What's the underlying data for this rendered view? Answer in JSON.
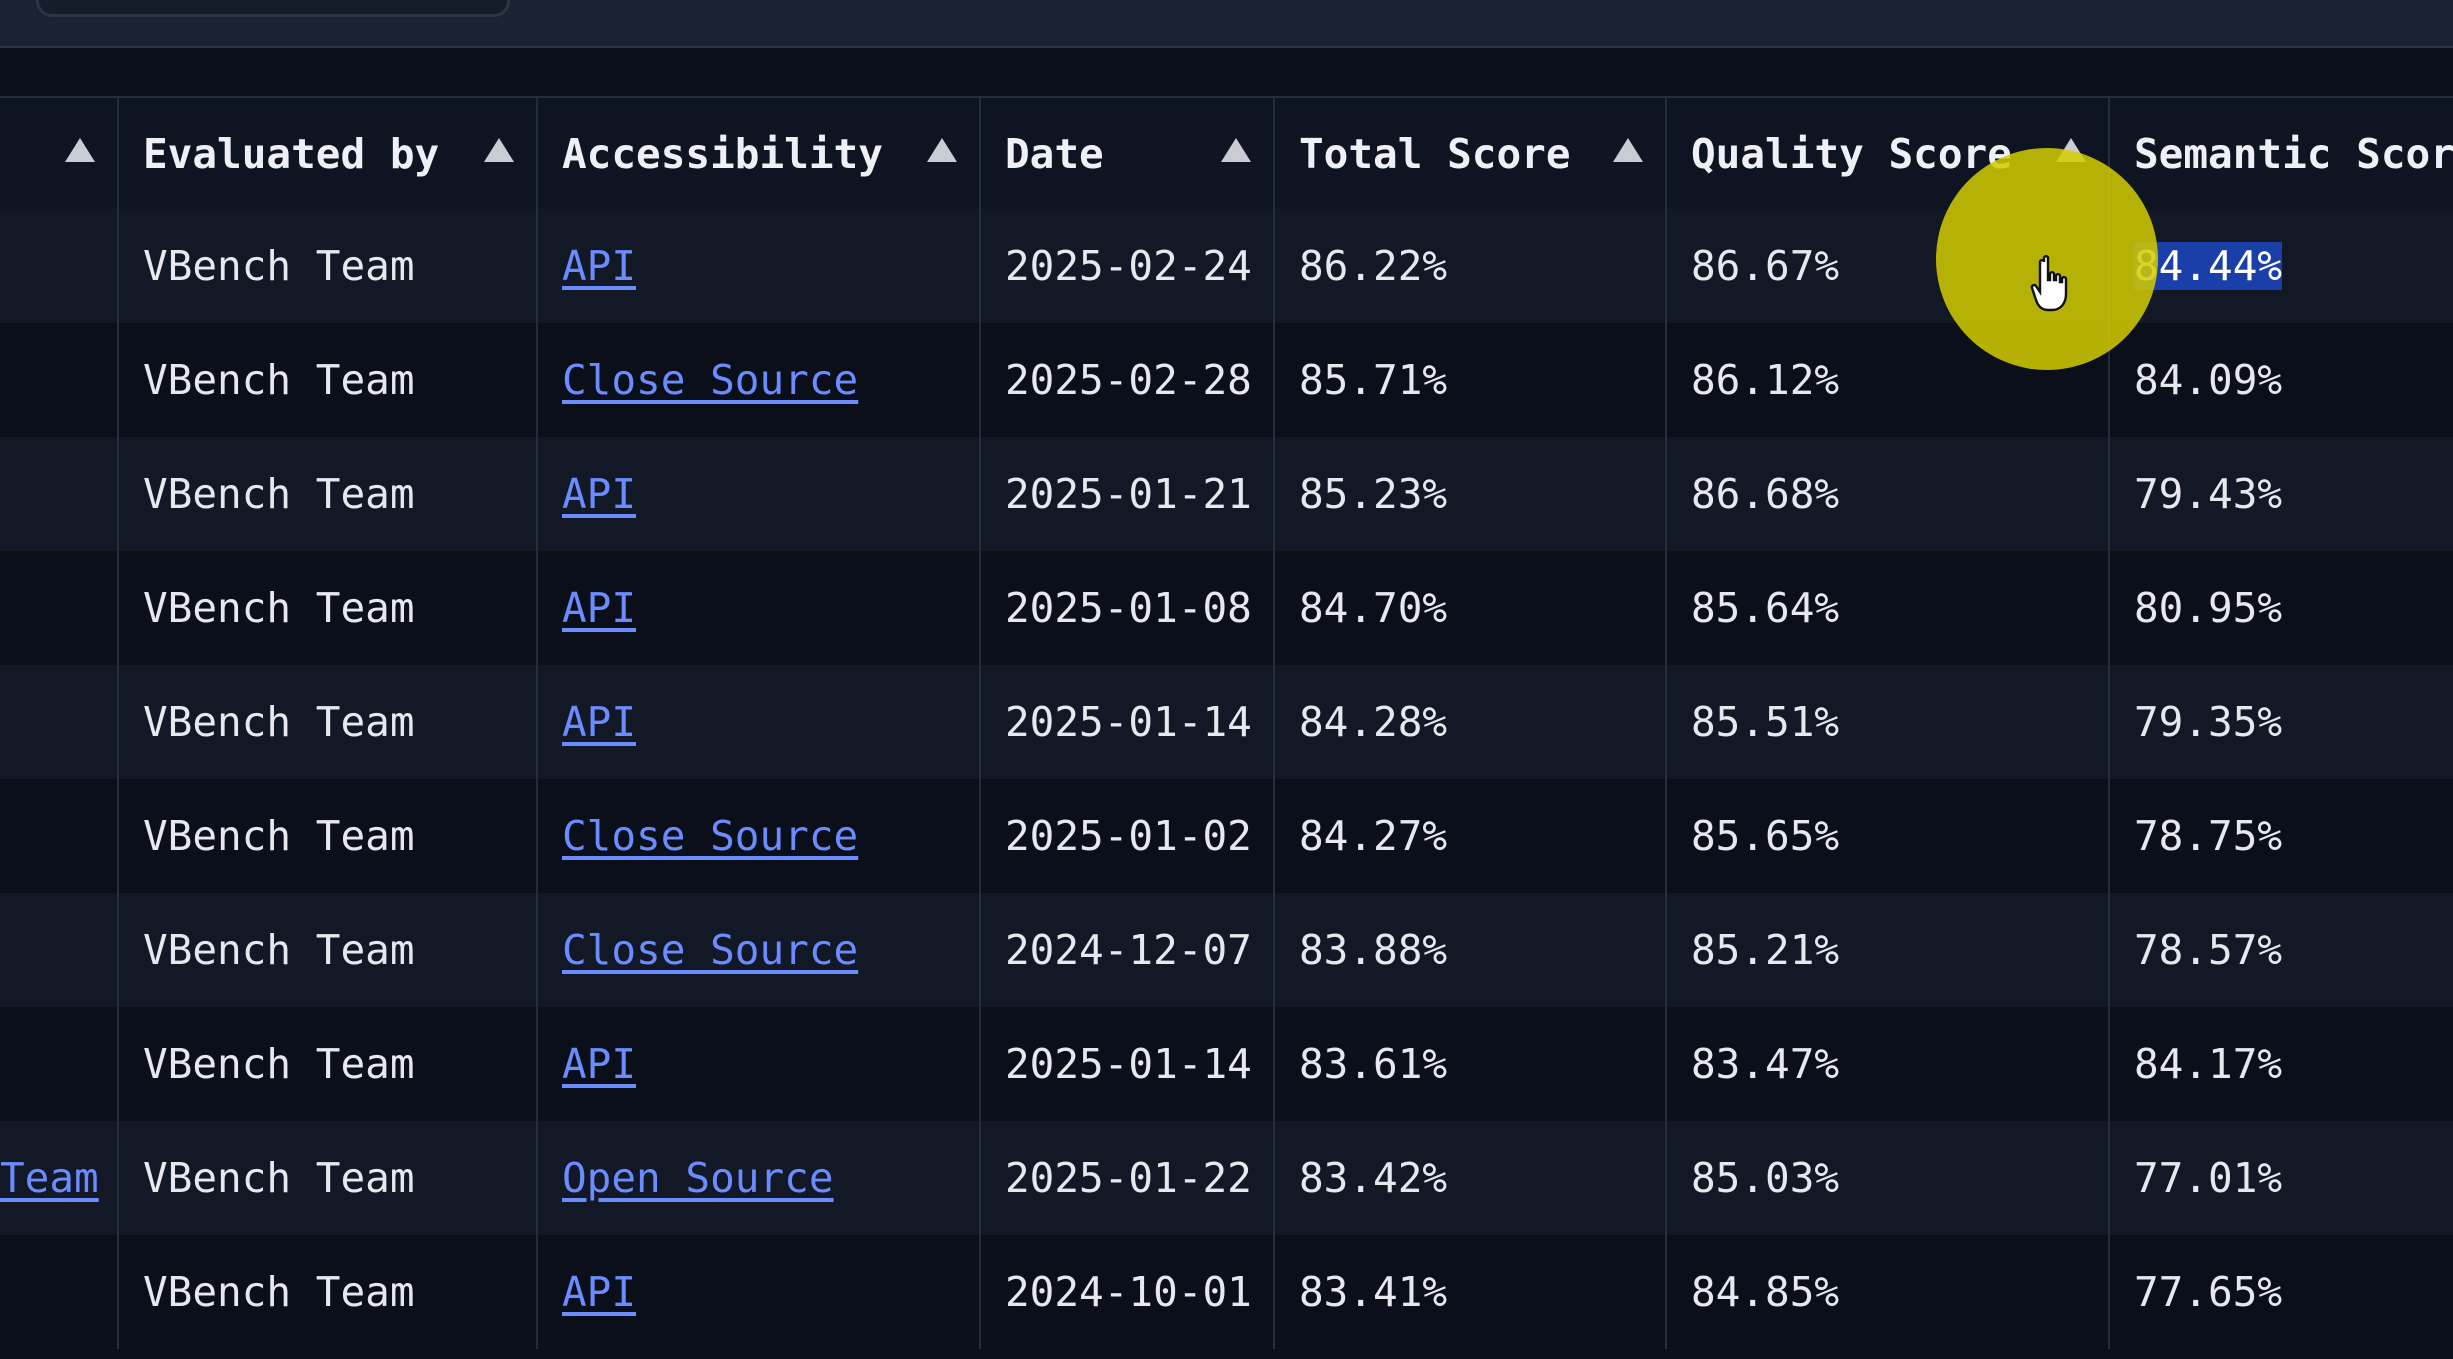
{
  "columns": [
    {
      "label": ""
    },
    {
      "label": "Evaluated by"
    },
    {
      "label": "Accessibility"
    },
    {
      "label": "Date"
    },
    {
      "label": "Total Score"
    },
    {
      "label": "Quality Score"
    },
    {
      "label": "Semantic Scor"
    }
  ],
  "rows": [
    {
      "first": "",
      "evaluated_by": "VBench Team",
      "accessibility": "API",
      "date": "2025-02-24",
      "total": "86.22%",
      "quality": "86.67%",
      "semantic": "84.44%"
    },
    {
      "first": "",
      "evaluated_by": "VBench Team",
      "accessibility": "Close Source",
      "date": "2025-02-28",
      "total": "85.71%",
      "quality": "86.12%",
      "semantic": "84.09%"
    },
    {
      "first": "",
      "evaluated_by": "VBench Team",
      "accessibility": "API",
      "date": "2025-01-21",
      "total": "85.23%",
      "quality": "86.68%",
      "semantic": "79.43%"
    },
    {
      "first": "",
      "evaluated_by": "VBench Team",
      "accessibility": "API",
      "date": "2025-01-08",
      "total": "84.70%",
      "quality": "85.64%",
      "semantic": "80.95%"
    },
    {
      "first": "",
      "evaluated_by": "VBench Team",
      "accessibility": "API",
      "date": "2025-01-14",
      "total": "84.28%",
      "quality": "85.51%",
      "semantic": "79.35%"
    },
    {
      "first": "",
      "evaluated_by": "VBench Team",
      "accessibility": "Close Source",
      "date": "2025-01-02",
      "total": "84.27%",
      "quality": "85.65%",
      "semantic": "78.75%"
    },
    {
      "first": "",
      "evaluated_by": "VBench Team",
      "accessibility": "Close Source",
      "date": "2024-12-07",
      "total": "83.88%",
      "quality": "85.21%",
      "semantic": "78.57%"
    },
    {
      "first": "",
      "evaluated_by": "VBench Team",
      "accessibility": "API",
      "date": "2025-01-14",
      "total": "83.61%",
      "quality": "83.47%",
      "semantic": "84.17%"
    },
    {
      "first": "Team",
      "evaluated_by": "VBench Team",
      "accessibility": "Open Source",
      "date": "2025-01-22",
      "total": "83.42%",
      "quality": "85.03%",
      "semantic": "77.01%"
    },
    {
      "first": "",
      "evaluated_by": "VBench Team",
      "accessibility": "API",
      "date": "2024-10-01",
      "total": "83.41%",
      "quality": "84.85%",
      "semantic": "77.65%"
    }
  ],
  "colors": {
    "link": "#6b8cff",
    "selection": "#1a3fa8",
    "cursor_highlight": "#d4cc00"
  },
  "icons": {
    "sort": "sort-ascending-icon",
    "cursor": "hand-pointer-icon"
  }
}
